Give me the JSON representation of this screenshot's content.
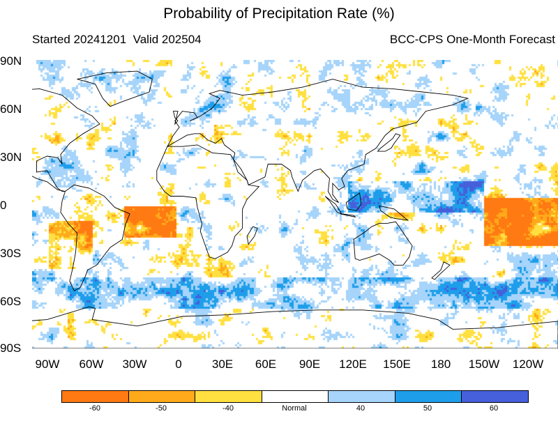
{
  "title": "Probability of Precipitation Rate (%)",
  "subtitle_left": "Started 20241201  Valid 202504",
  "subtitle_right": "BCC-CPS One-Month Forecast",
  "lat_labels": [
    "90N",
    "60N",
    "30N",
    "0",
    "30S",
    "60S",
    "90S"
  ],
  "lon_labels": [
    "90W",
    "60W",
    "30W",
    "0",
    "30E",
    "60E",
    "90E",
    "120E",
    "150E",
    "180",
    "150W",
    "120W"
  ],
  "colorbar": {
    "colors": [
      "#ff7a12",
      "#ffaa1a",
      "#ffe040",
      "#ffffff",
      "#a6d4fa",
      "#1e9eea",
      "#4660db"
    ],
    "labels": [
      "-60",
      "-50",
      "-40",
      "Normal",
      "40",
      "50",
      "60"
    ]
  },
  "map": {
    "lon_start": -100,
    "lon_end": 250,
    "lat_top": 90,
    "lat_bottom": -90,
    "coastline_color": "#000000"
  }
}
